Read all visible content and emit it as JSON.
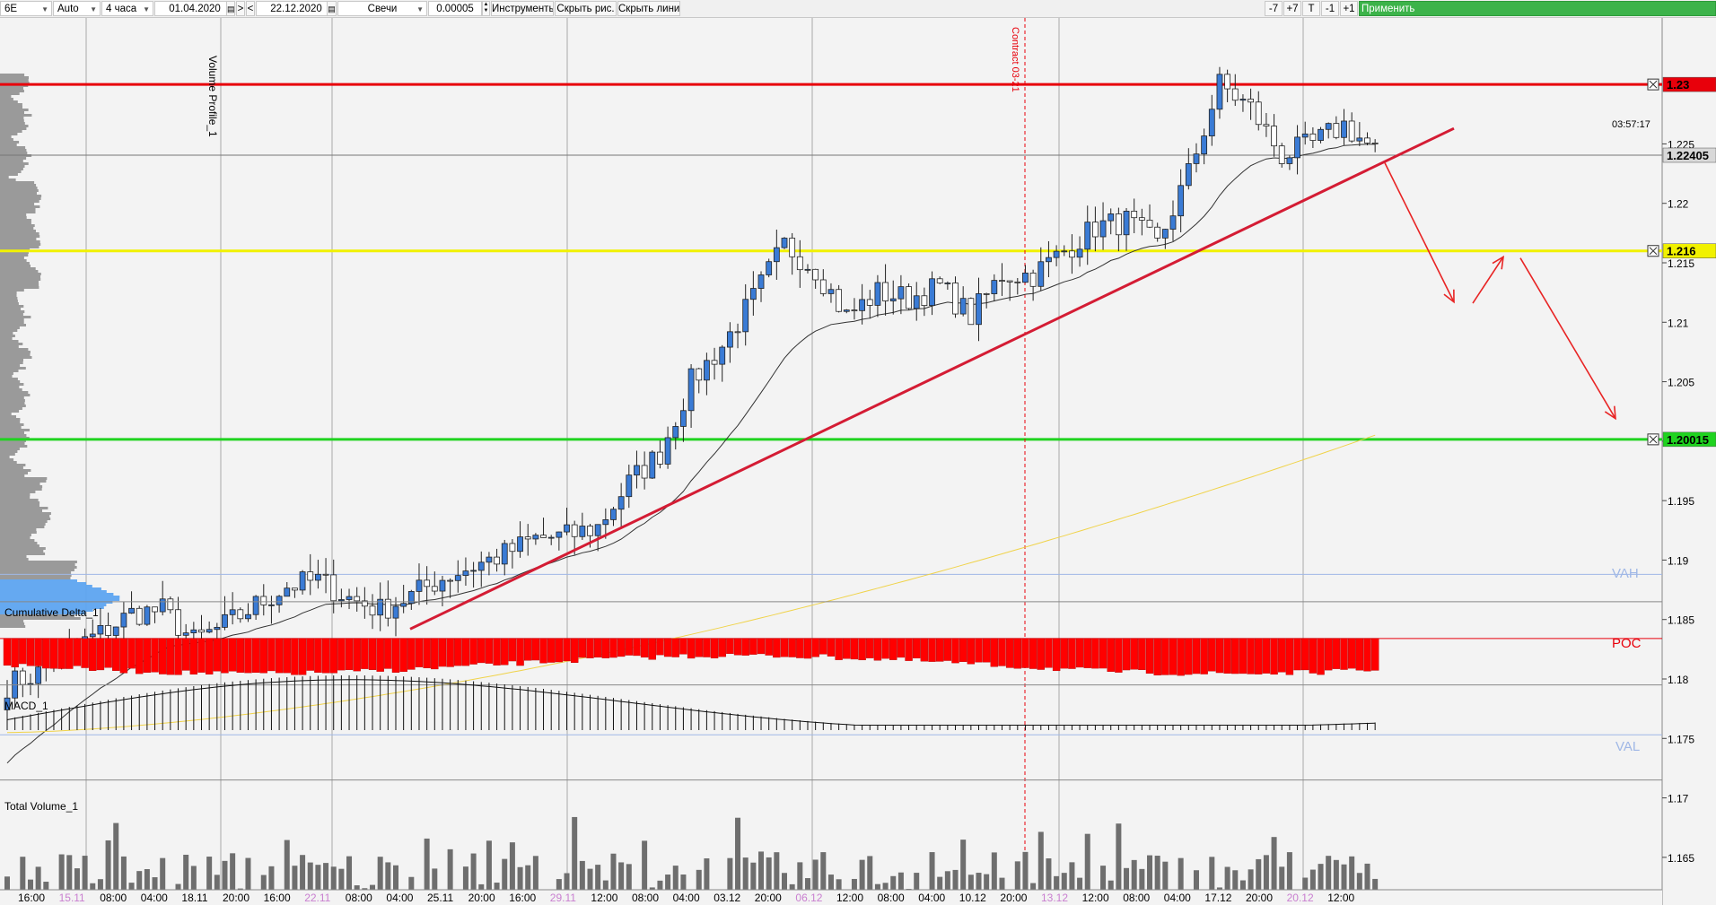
{
  "toolbar": {
    "symbol": "6E",
    "mode": "Auto",
    "timeframe": "4 часа",
    "date_from": "01.04.2020",
    "nav_next": ">",
    "nav_prev": "<",
    "date_to": "22.12.2020",
    "chart_type": "Свечи",
    "tick_size": "0.00005",
    "instruments": "Инструменты",
    "hide_drawings": "Скрыть рис.",
    "hide_lines": "Скрыть линии",
    "btn_minus7": "-7",
    "btn_plus7": "+7",
    "btn_t": "T",
    "btn_minus1": "-1",
    "btn_plus1": "+1",
    "apply": "Применить"
  },
  "chart_data": {
    "type": "candlestick",
    "ylim": [
      1.1625,
      1.2325
    ],
    "y_ticks": [
      "1.225",
      "1.22",
      "1.215",
      "1.21",
      "1.205",
      "1.2",
      "1.195",
      "1.19",
      "1.185",
      "1.18",
      "1.175",
      "1.17",
      "1.165"
    ],
    "x_ticks": [
      {
        "label": "16:00",
        "highlight": false
      },
      {
        "label": "15.11",
        "highlight": true
      },
      {
        "label": "08:00",
        "highlight": false
      },
      {
        "label": "04:00",
        "highlight": false
      },
      {
        "label": "18.11",
        "highlight": false
      },
      {
        "label": "20:00",
        "highlight": false
      },
      {
        "label": "16:00",
        "highlight": false
      },
      {
        "label": "22.11",
        "highlight": true
      },
      {
        "label": "08:00",
        "highlight": false
      },
      {
        "label": "04:00",
        "highlight": false
      },
      {
        "label": "25.11",
        "highlight": false
      },
      {
        "label": "20:00",
        "highlight": false
      },
      {
        "label": "16:00",
        "highlight": false
      },
      {
        "label": "29.11",
        "highlight": true
      },
      {
        "label": "12:00",
        "highlight": false
      },
      {
        "label": "08:00",
        "highlight": false
      },
      {
        "label": "04:00",
        "highlight": false
      },
      {
        "label": "03.12",
        "highlight": false
      },
      {
        "label": "20:00",
        "highlight": false
      },
      {
        "label": "06.12",
        "highlight": true
      },
      {
        "label": "12:00",
        "highlight": false
      },
      {
        "label": "08:00",
        "highlight": false
      },
      {
        "label": "04:00",
        "highlight": false
      },
      {
        "label": "10.12",
        "highlight": false
      },
      {
        "label": "20:00",
        "highlight": false
      },
      {
        "label": "13.12",
        "highlight": true
      },
      {
        "label": "12:00",
        "highlight": false
      },
      {
        "label": "08:00",
        "highlight": false
      },
      {
        "label": "04:00",
        "highlight": false
      },
      {
        "label": "17.12",
        "highlight": false
      },
      {
        "label": "20:00",
        "highlight": false
      },
      {
        "label": "20.12",
        "highlight": true
      },
      {
        "label": "12:00",
        "highlight": false
      }
    ],
    "close_path": [
      [
        0,
        1.1795
      ],
      [
        4,
        1.1805
      ],
      [
        8,
        1.1825
      ],
      [
        12,
        1.1838
      ],
      [
        16,
        1.1855
      ],
      [
        20,
        1.1858
      ],
      [
        24,
        1.1832
      ],
      [
        28,
        1.1845
      ],
      [
        32,
        1.1862
      ],
      [
        36,
        1.1878
      ],
      [
        40,
        1.1883
      ],
      [
        44,
        1.1868
      ],
      [
        48,
        1.1858
      ],
      [
        52,
        1.187
      ],
      [
        56,
        1.1885
      ],
      [
        60,
        1.1895
      ],
      [
        64,
        1.1905
      ],
      [
        68,
        1.1918
      ],
      [
        72,
        1.192
      ],
      [
        76,
        1.1928
      ],
      [
        80,
        1.1965
      ],
      [
        84,
        1.199
      ],
      [
        88,
        1.205
      ],
      [
        92,
        1.208
      ],
      [
        96,
        1.212
      ],
      [
        100,
        1.2165
      ],
      [
        104,
        1.2145
      ],
      [
        108,
        1.2105
      ],
      [
        112,
        1.2125
      ],
      [
        116,
        1.212
      ],
      [
        120,
        1.213
      ],
      [
        124,
        1.2105
      ],
      [
        128,
        1.214
      ],
      [
        132,
        1.214
      ],
      [
        136,
        1.216
      ],
      [
        140,
        1.218
      ],
      [
        144,
        1.2185
      ],
      [
        148,
        1.2165
      ],
      [
        152,
        1.2225
      ],
      [
        156,
        1.23
      ],
      [
        160,
        1.228
      ],
      [
        164,
        1.224
      ],
      [
        168,
        1.225
      ],
      [
        172,
        1.2266
      ],
      [
        176,
        1.2244
      ]
    ],
    "lines": {
      "resistance": 1.23,
      "middle": 1.216,
      "support": 1.20015,
      "last_price": 1.22405,
      "vah": 1.1888,
      "poc": 1.1834,
      "val": 1.1753
    },
    "price_labels": [
      "1.23",
      "1.216",
      "1.20015",
      "1.22405"
    ],
    "countdown": "03:57:17",
    "value_area_labels": {
      "vah": "VAH",
      "poc": "POC",
      "val": "VAL"
    },
    "indicators": {
      "volume_profile": "Volume Profile_1",
      "cumulative_delta": "Cumulative Delta_1",
      "macd": "MACD_1",
      "total_volume": "Total Volume_1"
    },
    "contract_label": "Contract 03-21",
    "colors": {
      "bull": "#3a7bd5",
      "bear": "#ffffff",
      "resistance": "#e8000b",
      "middle": "#f1f100",
      "support": "#1fd31f",
      "trendline": "#d41c34",
      "arrow": "#e82424",
      "ema200": "#f0d34a",
      "ema": "#333333",
      "vp": "#8a8a8a",
      "vp_hi": "#5da4f0",
      "delta": "#ff0000",
      "volume": "#6e6e6e",
      "poc": "#e8000b",
      "va": "#9fb7e6"
    }
  }
}
